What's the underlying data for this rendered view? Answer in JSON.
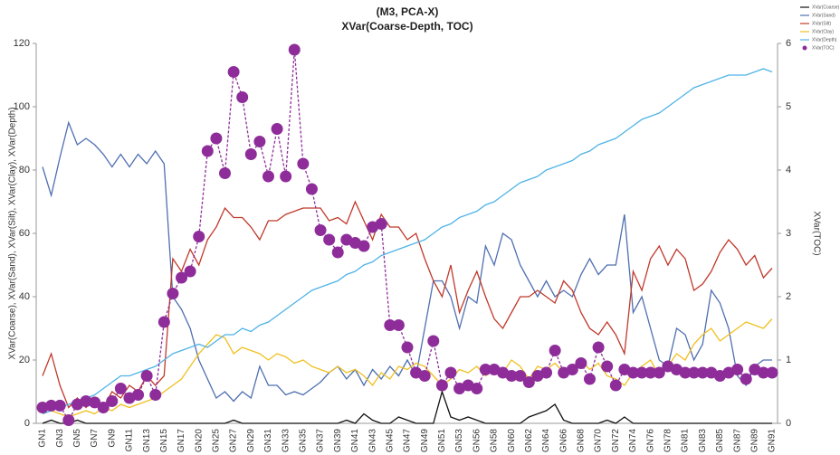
{
  "chart_data": {
    "type": "line",
    "title": "(M3, PCA-X)",
    "subtitle": "XVar(Coarse-Depth, TOC)",
    "y_label": "XVar(Coarse), XVar(Sand), XVar(Silt), XVar(Clay), XVar(Depth)",
    "y2_label": "XVar(TOC)",
    "categories": [
      "GN1",
      null,
      "GN3",
      null,
      "GN5",
      null,
      "GN7",
      null,
      "GN9",
      null,
      "GN11",
      null,
      "GN13",
      null,
      "GN15",
      null,
      "GN17",
      null,
      "GN20",
      null,
      "GN25",
      null,
      "GN27",
      null,
      "GN29",
      null,
      "GN31",
      null,
      "GN33",
      null,
      "GN35",
      null,
      "GN37",
      null,
      "GN39",
      null,
      "GN41",
      null,
      "GN43",
      null,
      "GN45",
      null,
      "GN47",
      null,
      "GN49",
      null,
      "GN51",
      null,
      "GN53",
      null,
      "GN56",
      null,
      "GN58",
      null,
      "GN60",
      null,
      "GN62",
      null,
      "GN64",
      null,
      "GN66",
      null,
      "GN68",
      null,
      "GN70",
      null,
      "GN72",
      null,
      "GN74",
      null,
      "GN76",
      null,
      "GN78",
      null,
      "GN81",
      null,
      "GN83",
      null,
      "GN85",
      null,
      "GN87",
      null,
      "GN89",
      null,
      "GN91"
    ],
    "ylim": [
      0,
      120
    ],
    "yticks": [
      0,
      20,
      40,
      60,
      80,
      100,
      120
    ],
    "y2lim": [
      0,
      6
    ],
    "y2ticks": [
      0,
      1,
      2,
      3,
      4,
      5,
      6
    ],
    "series": [
      {
        "name": "XVar(Coarse)",
        "color": "#111111",
        "values": [
          0,
          1,
          0,
          0,
          1,
          0,
          0,
          0,
          0,
          0,
          0,
          0,
          0,
          0,
          0,
          0,
          0,
          0,
          0,
          0,
          0,
          0,
          1,
          0,
          0,
          0,
          0,
          0,
          0,
          0,
          0,
          0,
          0,
          0,
          0,
          1,
          0,
          3,
          1,
          0,
          0,
          2,
          1,
          0,
          0,
          0,
          10,
          2,
          1,
          2,
          1,
          0,
          0,
          0,
          0,
          0,
          2,
          3,
          4,
          6,
          1,
          0,
          0,
          0,
          0,
          1,
          0,
          2,
          0,
          0,
          0,
          0,
          0,
          0,
          0,
          0,
          0,
          0,
          0,
          0,
          0,
          0,
          0,
          0,
          0
        ]
      },
      {
        "name": "XVar(Sand)",
        "color": "#4f6fb0",
        "values": [
          81,
          72,
          84,
          95,
          88,
          90,
          88,
          85,
          81,
          85,
          81,
          85,
          82,
          86,
          82,
          40,
          36,
          30,
          20,
          14,
          8,
          10,
          7,
          10,
          8,
          18,
          12,
          12,
          9,
          10,
          9,
          11,
          13,
          16,
          18,
          14,
          17,
          12,
          17,
          14,
          18,
          15,
          20,
          15,
          30,
          45,
          45,
          40,
          30,
          40,
          38,
          56,
          50,
          60,
          58,
          50,
          45,
          40,
          45,
          40,
          42,
          40,
          47,
          52,
          47,
          50,
          50,
          66,
          35,
          40,
          30,
          20,
          18,
          30,
          28,
          20,
          25,
          42,
          38,
          30,
          15,
          12,
          18,
          20,
          20
        ]
      },
      {
        "name": "XVar(Silt)",
        "color": "#c0392b",
        "values": [
          15,
          22,
          12,
          5,
          8,
          5,
          8,
          5,
          10,
          8,
          12,
          10,
          15,
          12,
          15,
          52,
          48,
          55,
          50,
          58,
          62,
          68,
          65,
          65,
          62,
          58,
          64,
          64,
          66,
          67,
          68,
          68,
          68,
          64,
          65,
          63,
          70,
          64,
          58,
          66,
          62,
          62,
          58,
          60,
          52,
          45,
          40,
          50,
          35,
          42,
          48,
          40,
          33,
          30,
          35,
          40,
          40,
          42,
          40,
          38,
          45,
          42,
          35,
          30,
          28,
          32,
          28,
          22,
          48,
          42,
          52,
          56,
          50,
          55,
          52,
          42,
          44,
          48,
          54,
          58,
          55,
          50,
          53,
          46,
          49
        ]
      },
      {
        "name": "XVar(Clay)",
        "color": "#f0c020",
        "values": [
          3,
          4,
          3,
          2,
          3,
          4,
          3,
          5,
          4,
          6,
          5,
          6,
          7,
          8,
          10,
          12,
          14,
          18,
          22,
          25,
          28,
          27,
          22,
          24,
          23,
          22,
          20,
          22,
          21,
          19,
          20,
          18,
          17,
          16,
          18,
          16,
          17,
          15,
          12,
          16,
          14,
          18,
          17,
          19,
          18,
          15,
          12,
          14,
          17,
          16,
          18,
          15,
          17,
          16,
          20,
          18,
          14,
          18,
          17,
          19,
          16,
          18,
          20,
          17,
          19,
          15,
          14,
          12,
          16,
          18,
          20,
          15,
          18,
          22,
          20,
          25,
          28,
          30,
          26,
          28,
          30,
          32,
          31,
          30,
          33
        ]
      },
      {
        "name": "XVar(Depth)",
        "color": "#4fb3e6",
        "values": [
          3,
          4,
          5,
          6,
          7,
          8,
          9,
          11,
          13,
          15,
          15,
          16,
          17,
          18,
          20,
          22,
          23,
          24,
          25,
          24,
          26,
          28,
          28,
          30,
          29,
          31,
          32,
          34,
          36,
          38,
          40,
          42,
          43,
          44,
          45,
          47,
          48,
          50,
          51,
          53,
          54,
          55,
          56,
          57,
          58,
          60,
          62,
          63,
          65,
          66,
          67,
          69,
          70,
          72,
          74,
          76,
          77,
          78,
          80,
          81,
          82,
          83,
          85,
          86,
          88,
          89,
          90,
          92,
          94,
          96,
          97,
          98,
          100,
          102,
          104,
          106,
          107,
          108,
          109,
          110,
          110,
          110,
          111,
          112,
          111
        ]
      },
      {
        "name": "XVar(TOC)",
        "color": "#8e2d9a",
        "axis": "y2",
        "values": [
          0.25,
          0.28,
          0.28,
          0.05,
          0.3,
          0.35,
          0.33,
          0.25,
          0.35,
          0.55,
          0.4,
          0.45,
          0.75,
          0.45,
          1.6,
          2.05,
          2.3,
          2.4,
          2.95,
          4.3,
          4.5,
          3.95,
          5.55,
          5.15,
          4.25,
          4.45,
          3.9,
          4.65,
          3.9,
          5.9,
          4.1,
          3.7,
          3.05,
          2.9,
          2.7,
          2.9,
          2.85,
          2.8,
          3.1,
          3.15,
          1.55,
          1.55,
          1.2,
          0.8,
          0.75,
          1.3,
          0.6,
          0.8,
          0.55,
          0.6,
          0.55,
          0.85,
          0.85,
          0.8,
          0.75,
          0.75,
          0.65,
          0.75,
          0.8,
          1.15,
          0.8,
          0.85,
          0.95,
          0.7,
          1.2,
          0.9,
          0.6,
          0.85,
          0.8,
          0.8,
          0.8,
          0.8,
          0.9,
          0.85,
          0.8,
          0.8,
          0.8,
          0.8,
          0.75,
          0.8,
          0.85,
          0.7,
          0.85,
          0.8,
          0.8
        ]
      }
    ]
  }
}
